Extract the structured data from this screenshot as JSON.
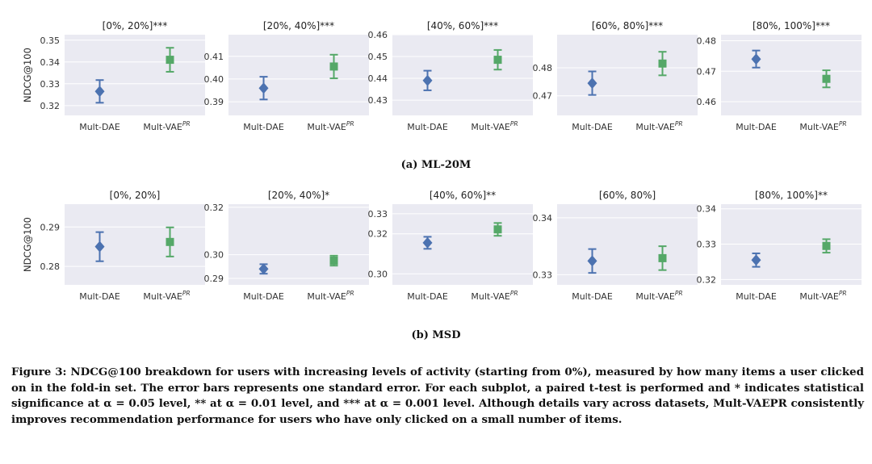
{
  "colors": {
    "plot_background": "#eaeaf2",
    "grid": "#ffffff",
    "mult_dae": "#4c72b0",
    "mult_vae": "#55a868"
  },
  "subfigure_captions": {
    "a": "(a) ML-20M",
    "b": "(b) MSD"
  },
  "figure_caption": "Figure 3: NDCG@100 breakdown for users with increasing levels of activity (starting from 0%), measured by how many items a user clicked on in the fold-in set. The error bars represents one standard error. For each subplot, a paired t-test is performed and * indicates statistical significance at α = 0.05 level, ** at α = 0.01 level, and *** at α = 0.001 level. Although details vary across datasets, Mult-VAEPR consistently improves recommendation performance for users who have only clicked on a small number of items.",
  "chart_data": [
    {
      "type": "scatter",
      "dataset": "ML-20M",
      "title": "[0%, 20%]***",
      "ylabel": "NDCG@100",
      "categories": [
        "Mult-DAE",
        "Mult-VAEPR"
      ],
      "ylim": [
        0.3155,
        0.3525
      ],
      "yticks": [
        0.32,
        0.33,
        0.34,
        0.35
      ],
      "tick_labels": [
        "0.32",
        "0.33",
        "0.34",
        "0.35"
      ],
      "series": [
        {
          "name": "Mult-DAE",
          "value": 0.3265,
          "error": 0.0052
        },
        {
          "name": "Mult-VAEPR",
          "value": 0.341,
          "error": 0.0055
        }
      ]
    },
    {
      "type": "scatter",
      "dataset": "ML-20M",
      "title": "[20%, 40%]***",
      "ylabel": "",
      "categories": [
        "Mult-DAE",
        "Mult-VAEPR"
      ],
      "ylim": [
        0.384,
        0.4195
      ],
      "yticks": [
        0.39,
        0.4,
        0.41
      ],
      "tick_labels": [
        "0.39",
        "0.40",
        "0.41"
      ],
      "series": [
        {
          "name": "Mult-DAE",
          "value": 0.396,
          "error": 0.005
        },
        {
          "name": "Mult-VAEPR",
          "value": 0.4055,
          "error": 0.0052
        }
      ]
    },
    {
      "type": "scatter",
      "dataset": "ML-20M",
      "title": "[40%, 60%]***",
      "ylabel": "",
      "categories": [
        "Mult-DAE",
        "Mult-VAEPR"
      ],
      "ylim": [
        0.423,
        0.46
      ],
      "yticks": [
        0.43,
        0.44,
        0.45,
        0.46
      ],
      "tick_labels": [
        "0.43",
        "0.44",
        "0.45",
        "0.46"
      ],
      "series": [
        {
          "name": "Mult-DAE",
          "value": 0.439,
          "error": 0.0045
        },
        {
          "name": "Mult-VAEPR",
          "value": 0.4485,
          "error": 0.0045
        }
      ]
    },
    {
      "type": "scatter",
      "dataset": "ML-20M",
      "title": "[60%, 80%]***",
      "ylabel": "",
      "categories": [
        "Mult-DAE",
        "Mult-VAEPR"
      ],
      "ylim": [
        0.463,
        0.4918
      ],
      "yticks": [
        0.47,
        0.48
      ],
      "tick_labels": [
        "0.47",
        "0.48"
      ],
      "series": [
        {
          "name": "Mult-DAE",
          "value": 0.4745,
          "error": 0.0042
        },
        {
          "name": "Mult-VAEPR",
          "value": 0.4815,
          "error": 0.0042
        }
      ]
    },
    {
      "type": "scatter",
      "dataset": "ML-20M",
      "title": "[80%, 100%]***",
      "ylabel": "",
      "categories": [
        "Mult-DAE",
        "Mult-VAEPR"
      ],
      "ylim": [
        0.4555,
        0.482
      ],
      "yticks": [
        0.46,
        0.47,
        0.48
      ],
      "tick_labels": [
        "0.46",
        "0.47",
        "0.48"
      ],
      "series": [
        {
          "name": "Mult-DAE",
          "value": 0.474,
          "error": 0.0028
        },
        {
          "name": "Mult-VAEPR",
          "value": 0.4675,
          "error": 0.0028
        }
      ]
    },
    {
      "type": "scatter",
      "dataset": "MSD",
      "title": "[0%, 20%]",
      "ylabel": "NDCG@100",
      "categories": [
        "Mult-DAE",
        "Mult-VAEPR"
      ],
      "ylim": [
        0.2753,
        0.2958
      ],
      "yticks": [
        0.28,
        0.29
      ],
      "tick_labels": [
        "0.28",
        "0.29"
      ],
      "series": [
        {
          "name": "Mult-DAE",
          "value": 0.285,
          "error": 0.0037
        },
        {
          "name": "Mult-VAEPR",
          "value": 0.2862,
          "error": 0.0037
        }
      ]
    },
    {
      "type": "scatter",
      "dataset": "MSD",
      "title": "[20%, 40%]*",
      "ylabel": "",
      "categories": [
        "Mult-DAE",
        "Mult-VAEPR"
      ],
      "ylim": [
        0.2873,
        0.3213
      ],
      "yticks": [
        0.29,
        0.3,
        0.32
      ],
      "tick_labels": [
        "0.29",
        "0.30",
        "0.32"
      ],
      "series": [
        {
          "name": "Mult-DAE",
          "value": 0.294,
          "error": 0.002
        },
        {
          "name": "Mult-VAEPR",
          "value": 0.2975,
          "error": 0.0021
        }
      ]
    },
    {
      "type": "scatter",
      "dataset": "MSD",
      "title": "[40%, 60%]**",
      "ylabel": "",
      "categories": [
        "Mult-DAE",
        "Mult-VAEPR"
      ],
      "ylim": [
        0.2945,
        0.3348
      ],
      "yticks": [
        0.3,
        0.32,
        0.33
      ],
      "tick_labels": [
        "0.30",
        "0.32",
        "0.33"
      ],
      "series": [
        {
          "name": "Mult-DAE",
          "value": 0.3155,
          "error": 0.003
        },
        {
          "name": "Mult-VAEPR",
          "value": 0.3222,
          "error": 0.0032
        }
      ]
    },
    {
      "type": "scatter",
      "dataset": "MSD",
      "title": "[60%, 80%]",
      "ylabel": "",
      "categories": [
        "Mult-DAE",
        "Mult-VAEPR"
      ],
      "ylim": [
        0.3282,
        0.3424
      ],
      "yticks": [
        0.33,
        0.34
      ],
      "tick_labels": [
        "0.33",
        "0.34"
      ],
      "series": [
        {
          "name": "Mult-DAE",
          "value": 0.3324,
          "error": 0.0021
        },
        {
          "name": "Mult-VAEPR",
          "value": 0.3329,
          "error": 0.0021
        }
      ]
    },
    {
      "type": "scatter",
      "dataset": "MSD",
      "title": "[80%, 100%]**",
      "ylabel": "",
      "categories": [
        "Mult-DAE",
        "Mult-VAEPR"
      ],
      "ylim": [
        0.3185,
        0.3413
      ],
      "yticks": [
        0.32,
        0.33,
        0.34
      ],
      "tick_labels": [
        "0.32",
        "0.33",
        "0.34"
      ],
      "series": [
        {
          "name": "Mult-DAE",
          "value": 0.3255,
          "error": 0.0019
        },
        {
          "name": "Mult-VAEPR",
          "value": 0.3295,
          "error": 0.0019
        }
      ]
    }
  ]
}
